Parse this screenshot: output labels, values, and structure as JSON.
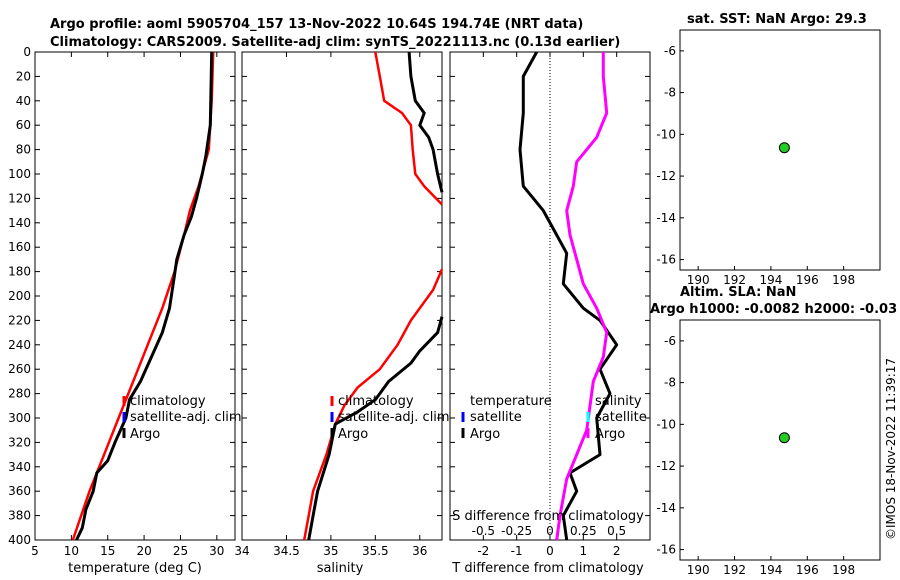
{
  "header": {
    "title_line1": "Argo profile: aoml 5905704_157 13-Nov-2022 10.64S 194.74E (NRT data)",
    "title_line2": "Climatology: CARS2009. Satellite-adj clim: synTS_20221113.nc (0.13d earlier)",
    "sst_title": "sat. SST: NaN Argo: 29.3",
    "sla_title1": "Altim. SLA: NaN",
    "sla_title2": "Argo h1000: -0.0082 h2000: -0.03",
    "watermark": "©IMOS 18-Nov-2022 11:39:17"
  },
  "colors": {
    "climatology": "#ff0000",
    "satellite": "#0000ff",
    "argo": "#000000",
    "salinity_diff": "#ff00ff",
    "marker": "#22cc22"
  },
  "chart_data": [
    {
      "type": "line",
      "name": "temperature",
      "xlabel": "temperature (deg C)",
      "xlim": [
        5,
        32.5
      ],
      "xticks": [
        "5",
        "10",
        "15",
        "20",
        "25",
        "30"
      ],
      "xtick_values": [
        5,
        10,
        15,
        20,
        25,
        30
      ],
      "ylim": [
        400,
        0
      ],
      "yticks": [
        "0",
        "20",
        "40",
        "60",
        "80",
        "100",
        "120",
        "140",
        "160",
        "180",
        "200",
        "220",
        "240",
        "260",
        "280",
        "300",
        "320",
        "340",
        "360",
        "380",
        "400"
      ],
      "ytick_values": [
        0,
        20,
        40,
        60,
        80,
        100,
        120,
        140,
        160,
        180,
        200,
        220,
        240,
        260,
        280,
        300,
        320,
        340,
        360,
        380,
        400
      ],
      "legend": [
        "climatology",
        "satellite-adj. clim",
        "Argo"
      ],
      "series": [
        {
          "name": "climatology",
          "points": [
            [
              29.5,
              0
            ],
            [
              29.3,
              40
            ],
            [
              28.9,
              80
            ],
            [
              27.5,
              110
            ],
            [
              26.3,
              130
            ],
            [
              25.5,
              150
            ],
            [
              24.2,
              180
            ],
            [
              22.5,
              210
            ],
            [
              20.5,
              240
            ],
            [
              18.5,
              270
            ],
            [
              16.5,
              300
            ],
            [
              14.5,
              330
            ],
            [
              12.5,
              360
            ],
            [
              10.2,
              400
            ]
          ]
        },
        {
          "name": "argo",
          "points": [
            [
              29.3,
              0
            ],
            [
              29.2,
              30
            ],
            [
              29.1,
              60
            ],
            [
              28.5,
              85
            ],
            [
              28.0,
              100
            ],
            [
              27.2,
              120
            ],
            [
              26.5,
              135
            ],
            [
              25.5,
              150
            ],
            [
              24.5,
              170
            ],
            [
              24.0,
              190
            ],
            [
              23.5,
              210
            ],
            [
              22.5,
              230
            ],
            [
              21.0,
              250
            ],
            [
              19.5,
              270
            ],
            [
              18.0,
              285
            ],
            [
              17.5,
              300
            ],
            [
              16.0,
              320
            ],
            [
              15.0,
              335
            ],
            [
              13.5,
              345
            ],
            [
              13.0,
              360
            ],
            [
              12.0,
              375
            ],
            [
              11.5,
              390
            ],
            [
              10.7,
              400
            ]
          ]
        }
      ]
    },
    {
      "type": "line",
      "name": "salinity",
      "xlabel": "salinity",
      "xlim": [
        34,
        36.25
      ],
      "xticks": [
        "34",
        "34.5",
        "35",
        "35.5",
        "36"
      ],
      "xtick_values": [
        34,
        34.5,
        35,
        35.5,
        36
      ],
      "ylim": [
        400,
        0
      ],
      "legend": [
        "climatology",
        "satellite-adj. clim",
        "Argo"
      ],
      "series": [
        {
          "name": "climatology",
          "points": [
            [
              35.5,
              0
            ],
            [
              35.55,
              20
            ],
            [
              35.6,
              40
            ],
            [
              35.8,
              50
            ],
            [
              35.9,
              60
            ],
            [
              35.92,
              80
            ],
            [
              35.95,
              100
            ],
            [
              36.05,
              110
            ],
            [
              36.25,
              125
            ]
          ]
        },
        {
          "name": "climatology_lower",
          "points": [
            [
              36.25,
              178
            ],
            [
              36.15,
              195
            ],
            [
              35.9,
              220
            ],
            [
              35.75,
              240
            ],
            [
              35.55,
              260
            ],
            [
              35.3,
              275
            ],
            [
              35.15,
              290
            ],
            [
              35.05,
              305
            ],
            [
              34.95,
              330
            ],
            [
              34.8,
              360
            ],
            [
              34.75,
              380
            ],
            [
              34.7,
              400
            ]
          ]
        },
        {
          "name": "argo",
          "points": [
            [
              35.88,
              0
            ],
            [
              35.9,
              20
            ],
            [
              35.95,
              40
            ],
            [
              36.05,
              50
            ],
            [
              36.0,
              60
            ],
            [
              36.1,
              70
            ],
            [
              36.15,
              80
            ],
            [
              36.2,
              100
            ],
            [
              36.25,
              115
            ]
          ]
        },
        {
          "name": "argo_lower",
          "points": [
            [
              36.25,
              217
            ],
            [
              36.2,
              230
            ],
            [
              36.0,
              245
            ],
            [
              35.9,
              255
            ],
            [
              35.65,
              270
            ],
            [
              35.5,
              285
            ],
            [
              35.3,
              295
            ],
            [
              35.05,
              305
            ],
            [
              34.98,
              330
            ],
            [
              34.85,
              360
            ],
            [
              34.8,
              380
            ],
            [
              34.75,
              400
            ]
          ]
        }
      ]
    },
    {
      "type": "line",
      "name": "difference",
      "xlabel": "T difference from climatology",
      "top_xlabel": "S difference from climatology",
      "xlim": [
        -3,
        3
      ],
      "xticks": [
        "-2",
        "-1",
        "0",
        "1",
        "2"
      ],
      "xtick_values": [
        -2,
        -1,
        0,
        1,
        2
      ],
      "top_xticks": [
        "-0.5",
        "-0.25",
        "0",
        "0.25",
        "0.5"
      ],
      "ylim": [
        400,
        0
      ],
      "legend_left": [
        "temperature",
        "satellite",
        "Argo"
      ],
      "legend_right": [
        "salinity",
        "satellite",
        "Argo"
      ],
      "series": [
        {
          "name": "temperature_diff",
          "points": [
            [
              -0.4,
              0
            ],
            [
              -0.8,
              20
            ],
            [
              -0.8,
              50
            ],
            [
              -0.9,
              80
            ],
            [
              -0.8,
              110
            ],
            [
              -0.2,
              130
            ],
            [
              0.2,
              150
            ],
            [
              0.5,
              165
            ],
            [
              0.4,
              190
            ],
            [
              1.0,
              210
            ],
            [
              1.5,
              220
            ],
            [
              2.0,
              240
            ],
            [
              1.5,
              260
            ],
            [
              1.8,
              280
            ],
            [
              1.4,
              300
            ],
            [
              1.5,
              330
            ],
            [
              0.6,
              345
            ],
            [
              0.8,
              360
            ],
            [
              0.4,
              380
            ],
            [
              0.5,
              400
            ]
          ]
        },
        {
          "name": "salinity_diff",
          "points": [
            [
              1.6,
              0
            ],
            [
              1.6,
              20
            ],
            [
              1.7,
              50
            ],
            [
              1.4,
              70
            ],
            [
              0.8,
              90
            ],
            [
              0.7,
              110
            ],
            [
              0.5,
              130
            ],
            [
              0.6,
              150
            ],
            [
              0.8,
              170
            ],
            [
              1.0,
              190
            ],
            [
              1.4,
              210
            ],
            [
              1.7,
              230
            ],
            [
              1.6,
              250
            ],
            [
              1.3,
              270
            ],
            [
              1.2,
              290
            ],
            [
              1.1,
              310
            ],
            [
              0.8,
              330
            ],
            [
              0.5,
              350
            ],
            [
              0.3,
              380
            ],
            [
              0.2,
              400
            ]
          ]
        }
      ]
    },
    {
      "type": "scatter",
      "name": "sst_map",
      "xlim": [
        189,
        200
      ],
      "ylim": [
        -16.5,
        -5
      ],
      "xticks": [
        "190",
        "192",
        "194",
        "196",
        "198"
      ],
      "xtick_values": [
        190,
        192,
        194,
        196,
        198
      ],
      "yticks": [
        "-6",
        "-8",
        "-10",
        "-12",
        "-14",
        "-16"
      ],
      "ytick_values": [
        -6,
        -8,
        -10,
        -12,
        -14,
        -16
      ],
      "points": [
        [
          194.74,
          -10.64
        ]
      ]
    },
    {
      "type": "scatter",
      "name": "sla_map",
      "xlim": [
        189,
        200
      ],
      "ylim": [
        -16.5,
        -5
      ],
      "xticks": [
        "190",
        "192",
        "194",
        "196",
        "198"
      ],
      "xtick_values": [
        190,
        192,
        194,
        196,
        198
      ],
      "yticks": [
        "-6",
        "-8",
        "-10",
        "-12",
        "-14",
        "-16"
      ],
      "ytick_values": [
        -6,
        -8,
        -10,
        -12,
        -14,
        -16
      ],
      "points": [
        [
          194.74,
          -10.64
        ]
      ]
    }
  ]
}
